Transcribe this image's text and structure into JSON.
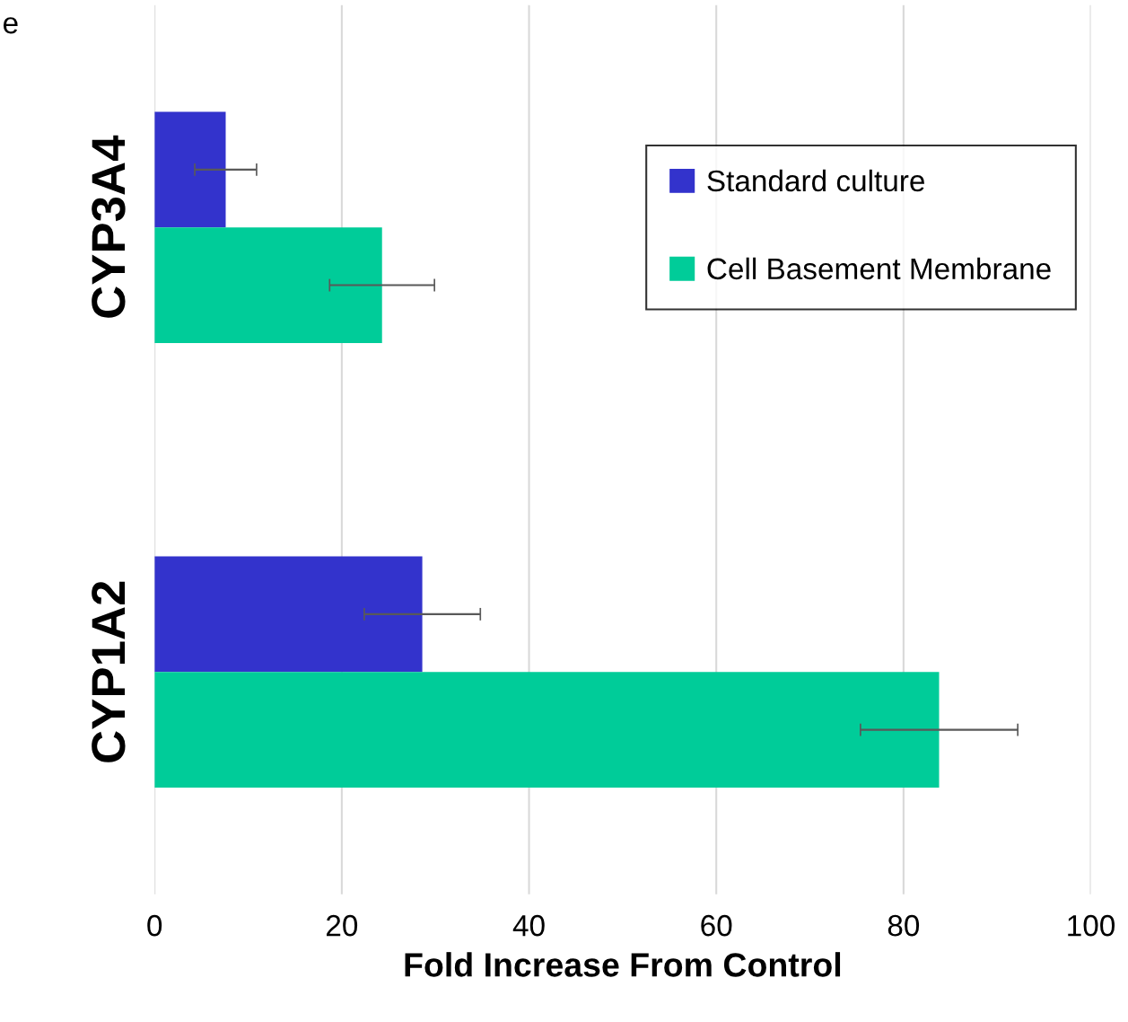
{
  "chart_data": {
    "type": "bar",
    "orientation": "horizontal",
    "xlabel": "Fold Increase From Control",
    "categories": [
      "CYP3A4",
      "CYP1A2"
    ],
    "series": [
      {
        "name": "Standard culture",
        "color": "#3333cc",
        "values": [
          7.6,
          28.6
        ],
        "errors": [
          3.3,
          6.2
        ]
      },
      {
        "name": "Cell Basement Membrane",
        "color": "#00cc99",
        "values": [
          24.3,
          83.8
        ],
        "errors": [
          5.6,
          8.4
        ]
      }
    ],
    "xlim": [
      0,
      100
    ],
    "xticks": [
      0,
      20,
      40,
      60,
      80,
      100
    ],
    "grid": "x",
    "legend": "right",
    "annotations": [
      "e"
    ]
  }
}
